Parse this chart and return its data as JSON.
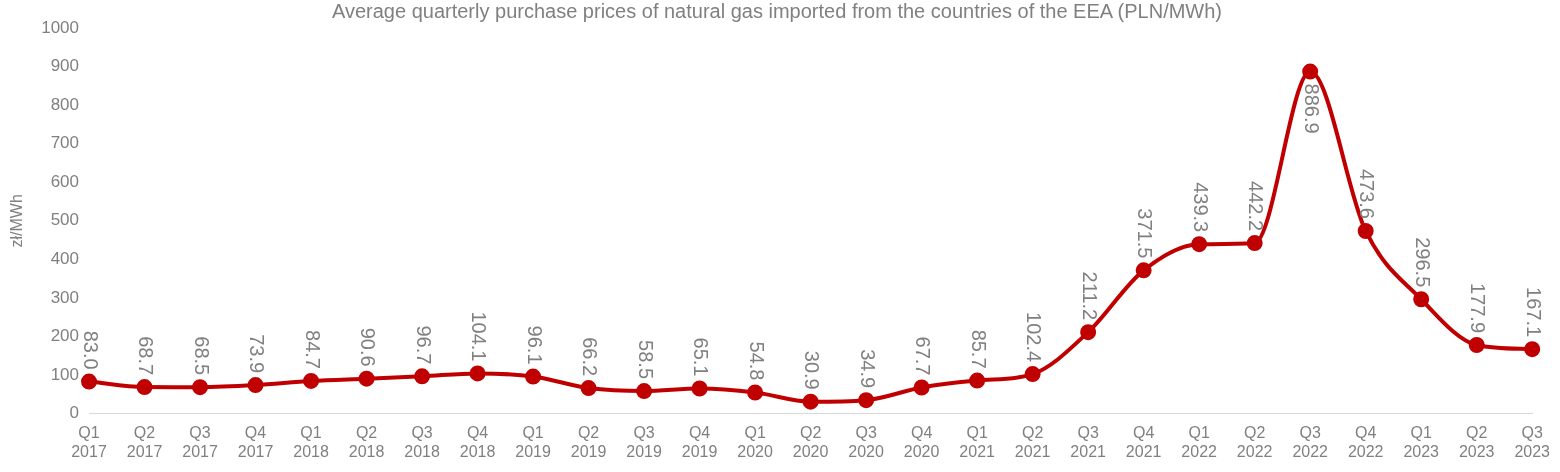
{
  "chart_data": {
    "type": "line",
    "title": "Average quarterly purchase prices of natural gas imported from the countries of the EEA (PLN/MWh)",
    "ylabel": "zł/MWh",
    "categories": [
      "Q1 2017",
      "Q2 2017",
      "Q3 2017",
      "Q4 2017",
      "Q1 2018",
      "Q2 2018",
      "Q3 2018",
      "Q4 2018",
      "Q1 2019",
      "Q2 2019",
      "Q3 2019",
      "Q4 2019",
      "Q1 2020",
      "Q2 2020",
      "Q3 2020",
      "Q4 2020",
      "Q1 2021",
      "Q2 2021",
      "Q3 2021",
      "Q4 2021",
      "Q1 2022",
      "Q2 2022",
      "Q3 2022",
      "Q4 2022",
      "Q1 2023",
      "Q2 2023",
      "Q3 2023"
    ],
    "values": [
      83.0,
      68.7,
      68.5,
      73.9,
      84.7,
      90.6,
      96.7,
      104.1,
      96.1,
      66.2,
      58.5,
      65.1,
      54.8,
      30.9,
      34.9,
      67.7,
      85.7,
      102.4,
      211.2,
      371.5,
      439.3,
      442.2,
      886.9,
      473.6,
      296.5,
      177.9,
      167.1
    ],
    "value_labels": [
      "83.0",
      "68.7",
      "68.5",
      "73.9",
      "84.7",
      "90.6",
      "96.7",
      "104.1",
      "96.1",
      "66.2",
      "58.5",
      "65.1",
      "54.8",
      "30.9",
      "34.9",
      "67.7",
      "85.7",
      "102.4",
      "211.2",
      "371.5",
      "439.3",
      "442.2",
      "886.9",
      "473.6",
      "296.5",
      "177.9",
      "167.1"
    ],
    "color": "#c00000",
    "ylim": [
      0,
      1000
    ],
    "yticks": [
      0,
      100,
      200,
      300,
      400,
      500,
      600,
      700,
      800,
      900,
      1000
    ],
    "grid": false,
    "legend": false,
    "marker": "circle",
    "line_style": "solid"
  }
}
